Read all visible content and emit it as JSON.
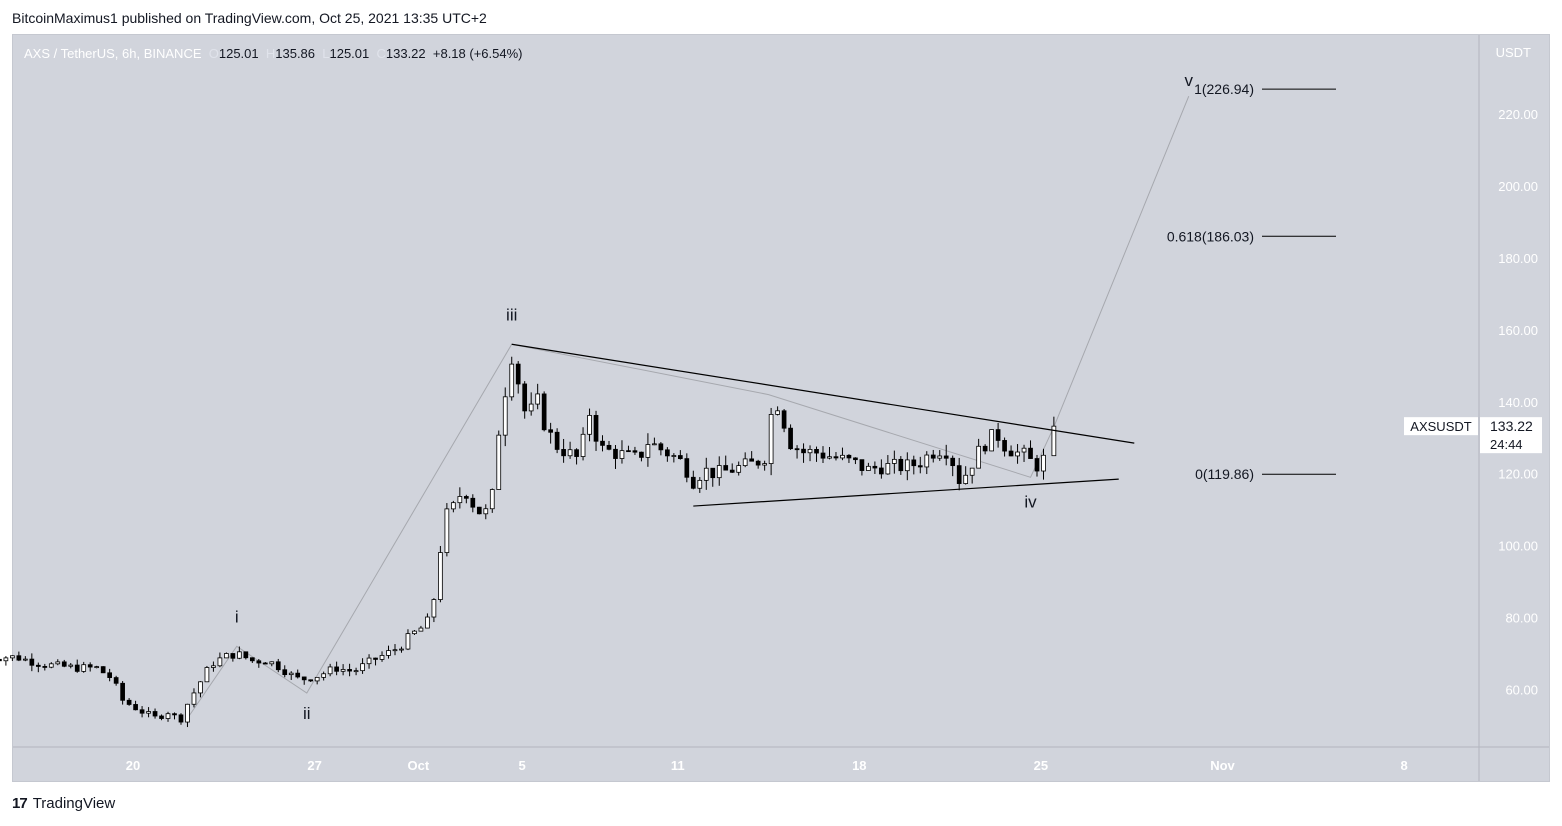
{
  "header": {
    "published_line": "BitcoinMaximus1 published on TradingView.com, Oct 25, 2021 13:35 UTC+2"
  },
  "footer": {
    "logo_glyph": "17",
    "brand": "TradingView"
  },
  "legend": {
    "symbol": "AXS / TetherUS, 6h, BINANCE",
    "o_label": "O",
    "o_value": "125.01",
    "h_label": "H",
    "h_value": "135.86",
    "l_label": "L",
    "l_value": "125.01",
    "c_label": "C",
    "c_value": "133.22",
    "change": "+8.18 (+6.54%)"
  },
  "price_axis": {
    "currency": "USDT",
    "ticks": [
      "220.00",
      "200.00",
      "180.00",
      "160.00",
      "140.00",
      "120.00",
      "100.00",
      "80.00",
      "60.00"
    ],
    "last_price": "133.22",
    "countdown": "24:44",
    "symbol_tag": "AXSUSDT"
  },
  "colors": {
    "background": "#d1d4dc",
    "candle_up": "#ffffff",
    "candle_down": "#000000",
    "wave_line": "#a6a8ae",
    "trend_line": "#000000"
  },
  "chart_data": {
    "type": "candlestick",
    "title": "AXS / TetherUS, 6h, BINANCE",
    "ylabel": "USDT",
    "ylim": [
      44,
      242
    ],
    "y_ticks": [
      60,
      80,
      100,
      120,
      140,
      160,
      180,
      200,
      220
    ],
    "x_ticks": [
      {
        "label": "20",
        "day": 20
      },
      {
        "label": "27",
        "day": 27
      },
      {
        "label": "Oct",
        "day": 31
      },
      {
        "label": "5",
        "day": 35
      },
      {
        "label": "11",
        "day": 41
      },
      {
        "label": "18",
        "day": 48
      },
      {
        "label": "25",
        "day": 55
      },
      {
        "label": "Nov",
        "day": 62
      },
      {
        "label": "8",
        "day": 69
      }
    ],
    "x_unit": "days since Sep 1, 2021",
    "waypoints": [
      {
        "day": 14.1,
        "price": 69
      },
      {
        "day": 15.5,
        "price": 69
      },
      {
        "day": 16.5,
        "price": 67
      },
      {
        "day": 17.8,
        "price": 66
      },
      {
        "day": 18.6,
        "price": 66
      },
      {
        "day": 19.2,
        "price": 63
      },
      {
        "day": 19.6,
        "price": 57
      },
      {
        "day": 20.3,
        "price": 54
      },
      {
        "day": 20.9,
        "price": 52
      },
      {
        "day": 21.4,
        "price": 54
      },
      {
        "day": 21.8,
        "price": 51
      },
      {
        "day": 22.1,
        "price": 56
      },
      {
        "day": 22.5,
        "price": 61
      },
      {
        "day": 23.0,
        "price": 67
      },
      {
        "day": 23.5,
        "price": 69
      },
      {
        "day": 24.0,
        "price": 70
      },
      {
        "day": 24.6,
        "price": 68
      },
      {
        "day": 25.2,
        "price": 68
      },
      {
        "day": 25.7,
        "price": 66
      },
      {
        "day": 26.3,
        "price": 63
      },
      {
        "day": 26.7,
        "price": 63
      },
      {
        "day": 27.2,
        "price": 64
      },
      {
        "day": 27.8,
        "price": 66
      },
      {
        "day": 28.5,
        "price": 65
      },
      {
        "day": 29.2,
        "price": 68
      },
      {
        "day": 29.8,
        "price": 70
      },
      {
        "day": 30.3,
        "price": 72
      },
      {
        "day": 30.7,
        "price": 75
      },
      {
        "day": 31.1,
        "price": 77
      },
      {
        "day": 31.5,
        "price": 80
      },
      {
        "day": 31.8,
        "price": 96
      },
      {
        "day": 32.0,
        "price": 108
      },
      {
        "day": 32.3,
        "price": 110
      },
      {
        "day": 32.6,
        "price": 114
      },
      {
        "day": 32.9,
        "price": 115
      },
      {
        "day": 33.2,
        "price": 110
      },
      {
        "day": 33.5,
        "price": 109
      },
      {
        "day": 33.8,
        "price": 110
      },
      {
        "day": 34.0,
        "price": 126
      },
      {
        "day": 34.2,
        "price": 138
      },
      {
        "day": 34.4,
        "price": 145
      },
      {
        "day": 34.6,
        "price": 153
      },
      {
        "day": 34.8,
        "price": 148
      },
      {
        "day": 35.0,
        "price": 139
      },
      {
        "day": 35.2,
        "price": 136
      },
      {
        "day": 35.6,
        "price": 140
      },
      {
        "day": 35.9,
        "price": 133
      },
      {
        "day": 36.3,
        "price": 128
      },
      {
        "day": 36.7,
        "price": 126
      },
      {
        "day": 37.2,
        "price": 124
      },
      {
        "day": 37.6,
        "price": 137
      },
      {
        "day": 38.0,
        "price": 127
      },
      {
        "day": 38.5,
        "price": 126
      },
      {
        "day": 39.0,
        "price": 125
      },
      {
        "day": 39.5,
        "price": 124
      },
      {
        "day": 39.8,
        "price": 129
      },
      {
        "day": 40.3,
        "price": 127
      },
      {
        "day": 40.8,
        "price": 125
      },
      {
        "day": 41.2,
        "price": 123
      },
      {
        "day": 41.6,
        "price": 118
      },
      {
        "day": 42.0,
        "price": 121
      },
      {
        "day": 42.5,
        "price": 120
      },
      {
        "day": 43.0,
        "price": 121
      },
      {
        "day": 43.5,
        "price": 122
      },
      {
        "day": 44.0,
        "price": 123
      },
      {
        "day": 44.4,
        "price": 125
      },
      {
        "day": 44.7,
        "price": 142
      },
      {
        "day": 45.0,
        "price": 137
      },
      {
        "day": 45.3,
        "price": 129
      },
      {
        "day": 45.8,
        "price": 126
      },
      {
        "day": 46.3,
        "price": 126
      },
      {
        "day": 46.8,
        "price": 125
      },
      {
        "day": 47.3,
        "price": 124
      },
      {
        "day": 47.8,
        "price": 123
      },
      {
        "day": 48.3,
        "price": 121
      },
      {
        "day": 48.8,
        "price": 122
      },
      {
        "day": 49.3,
        "price": 122
      },
      {
        "day": 49.8,
        "price": 122
      },
      {
        "day": 50.3,
        "price": 123
      },
      {
        "day": 50.8,
        "price": 126
      },
      {
        "day": 51.2,
        "price": 127
      },
      {
        "day": 51.5,
        "price": 126
      },
      {
        "day": 51.8,
        "price": 118
      },
      {
        "day": 52.1,
        "price": 120
      },
      {
        "day": 52.5,
        "price": 125
      },
      {
        "day": 52.9,
        "price": 129
      },
      {
        "day": 53.3,
        "price": 131
      },
      {
        "day": 53.6,
        "price": 128
      },
      {
        "day": 54.0,
        "price": 126
      },
      {
        "day": 54.4,
        "price": 125
      },
      {
        "day": 54.8,
        "price": 122
      },
      {
        "day": 55.1,
        "price": 124
      },
      {
        "day": 55.3,
        "price": 125
      },
      {
        "day": 55.5,
        "price": 133.22
      }
    ],
    "last_candle": {
      "open": 125.01,
      "high": 135.86,
      "low": 125.01,
      "close": 133.22
    },
    "elliott_wave": [
      {
        "label": "i",
        "day": 24.0,
        "price": 72
      },
      {
        "label": "ii",
        "day": 26.7,
        "price": 59
      },
      {
        "label": "iii",
        "day": 34.6,
        "price": 156
      },
      {
        "label": "iv",
        "day": 54.6,
        "price": 119
      },
      {
        "label": "v",
        "day": 60.7,
        "price": 225
      }
    ],
    "wave_path_points": [
      {
        "day": 22.1,
        "price": 52
      },
      {
        "day": 24.0,
        "price": 72
      },
      {
        "day": 26.7,
        "price": 59
      },
      {
        "day": 34.6,
        "price": 156
      },
      {
        "day": 44.5,
        "price": 142
      },
      {
        "day": 54.6,
        "price": 119
      },
      {
        "day": 55.5,
        "price": 133
      },
      {
        "day": 60.7,
        "price": 225
      }
    ],
    "triangle": {
      "upper": [
        {
          "day": 34.6,
          "price": 156
        },
        {
          "day": 58.6,
          "price": 128.5
        }
      ],
      "lower": [
        {
          "day": 41.6,
          "price": 111
        },
        {
          "day": 58.0,
          "price": 118.5
        }
      ]
    },
    "fib_levels": [
      {
        "label": "1(226.94)",
        "price": 226.94
      },
      {
        "label": "0.618(186.03)",
        "price": 186.03
      },
      {
        "label": "0(119.86)",
        "price": 119.86
      }
    ]
  }
}
